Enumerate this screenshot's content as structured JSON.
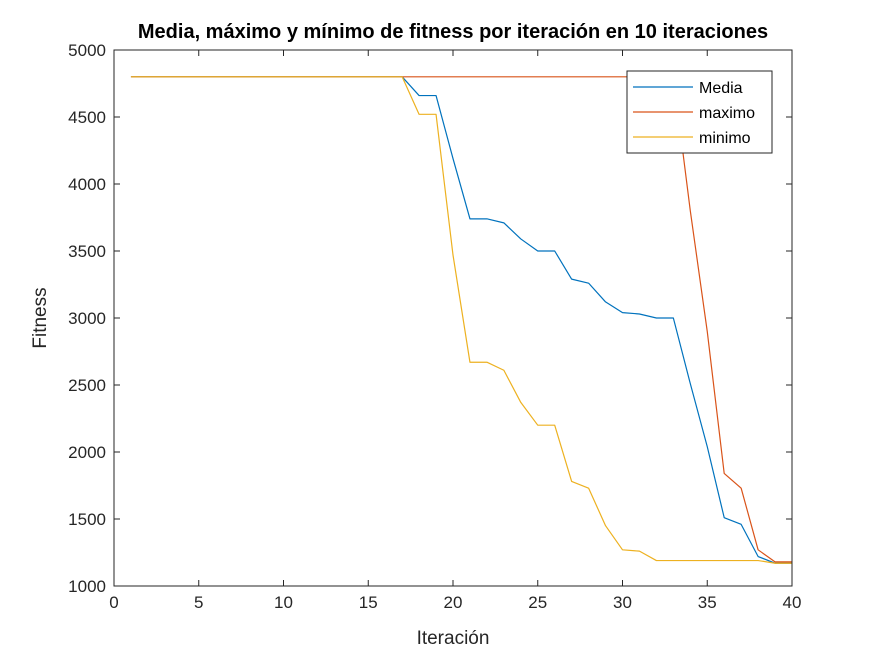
{
  "chart_data": {
    "type": "line",
    "title": "Media, máximo y mínimo de fitness por iteración en 10 iteraciones",
    "xlabel": "Iteración",
    "ylabel": "Fitness",
    "xlim": [
      0,
      40
    ],
    "ylim": [
      1000,
      5000
    ],
    "xticks": [
      0,
      5,
      10,
      15,
      20,
      25,
      30,
      35,
      40
    ],
    "yticks": [
      1000,
      1500,
      2000,
      2500,
      3000,
      3500,
      4000,
      4500,
      5000
    ],
    "grid": false,
    "legend_position": "top-right",
    "x": [
      1,
      2,
      3,
      4,
      5,
      6,
      7,
      8,
      9,
      10,
      11,
      12,
      13,
      14,
      15,
      16,
      17,
      18,
      19,
      20,
      21,
      22,
      23,
      24,
      25,
      26,
      27,
      28,
      29,
      30,
      31,
      32,
      33,
      34,
      35,
      36,
      37,
      38,
      39,
      40
    ],
    "series": [
      {
        "name": "Media",
        "color": "#0072BD",
        "values": [
          4800,
          4800,
          4800,
          4800,
          4800,
          4800,
          4800,
          4800,
          4800,
          4800,
          4800,
          4800,
          4800,
          4800,
          4800,
          4800,
          4800,
          4660,
          4660,
          4190,
          3740,
          3740,
          3710,
          3590,
          3500,
          3500,
          3290,
          3260,
          3120,
          3040,
          3030,
          3000,
          3000,
          2510,
          2040,
          1510,
          1460,
          1220,
          1170,
          1170
        ]
      },
      {
        "name": "maximo",
        "color": "#D95319",
        "values": [
          4800,
          4800,
          4800,
          4800,
          4800,
          4800,
          4800,
          4800,
          4800,
          4800,
          4800,
          4800,
          4800,
          4800,
          4800,
          4800,
          4800,
          4800,
          4800,
          4800,
          4800,
          4800,
          4800,
          4800,
          4800,
          4800,
          4800,
          4800,
          4800,
          4800,
          4800,
          4800,
          4800,
          3800,
          2900,
          1840,
          1730,
          1270,
          1180,
          1180
        ]
      },
      {
        "name": "minimo",
        "color": "#EDB120",
        "values": [
          4800,
          4800,
          4800,
          4800,
          4800,
          4800,
          4800,
          4800,
          4800,
          4800,
          4800,
          4800,
          4800,
          4800,
          4800,
          4800,
          4800,
          4520,
          4520,
          3470,
          2670,
          2670,
          2610,
          2370,
          2200,
          2200,
          1780,
          1730,
          1450,
          1270,
          1260,
          1190,
          1190,
          1190,
          1190,
          1190,
          1190,
          1190,
          1170,
          1170
        ]
      }
    ]
  }
}
